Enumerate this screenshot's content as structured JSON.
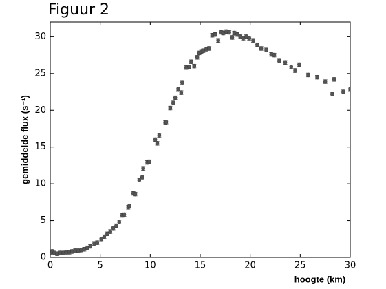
{
  "chart_data": {
    "type": "scatter",
    "title": "Figuur 2",
    "x_label": "hoogte (km)",
    "y_label": "gemiddelde flux (s⁻¹)",
    "x": [
      0.1,
      0.2,
      0.4,
      0.7,
      1.0,
      1.3,
      1.6,
      1.9,
      2.2,
      2.5,
      2.8,
      3.1,
      3.4,
      3.7,
      4.0,
      4.4,
      4.7,
      5.1,
      5.4,
      5.7,
      6.0,
      6.3,
      6.6,
      6.9,
      7.2,
      7.4,
      7.8,
      7.9,
      8.3,
      8.5,
      8.9,
      9.2,
      9.3,
      9.7,
      9.9,
      10.5,
      10.7,
      10.9,
      11.5,
      11.6,
      12.0,
      12.3,
      12.5,
      12.8,
      13.1,
      13.2,
      13.6,
      13.9,
      14.1,
      14.4,
      14.7,
      14.9,
      15.1,
      15.3,
      15.6,
      15.9,
      16.2,
      16.5,
      16.8,
      17.1,
      17.3,
      17.6,
      17.9,
      18.2,
      18.4,
      18.7,
      19.0,
      19.3,
      19.6,
      19.9,
      20.3,
      20.7,
      21.1,
      21.6,
      22.1,
      22.4,
      22.9,
      23.5,
      24.1,
      24.5,
      24.9,
      25.8,
      26.7,
      27.5,
      28.2,
      28.4,
      29.3,
      30.0
    ],
    "values": [
      0.7,
      0.8,
      0.6,
      0.5,
      0.6,
      0.6,
      0.7,
      0.7,
      0.8,
      0.9,
      0.9,
      1.0,
      1.1,
      1.3,
      1.5,
      1.9,
      2.0,
      2.5,
      2.8,
      3.2,
      3.5,
      4.0,
      4.3,
      4.8,
      5.7,
      5.8,
      6.8,
      7.0,
      8.7,
      8.6,
      10.5,
      10.9,
      12.1,
      12.9,
      13.0,
      16.0,
      15.5,
      16.6,
      18.3,
      18.4,
      20.3,
      21.0,
      21.7,
      22.9,
      22.4,
      23.8,
      25.8,
      25.9,
      26.6,
      26.0,
      27.2,
      27.8,
      28.0,
      28.1,
      28.3,
      28.4,
      30.2,
      30.3,
      29.5,
      30.6,
      30.5,
      30.7,
      30.6,
      29.9,
      30.5,
      30.3,
      30.0,
      29.8,
      30.0,
      29.8,
      29.5,
      28.9,
      28.4,
      28.2,
      27.6,
      27.5,
      26.7,
      26.5,
      25.9,
      25.4,
      26.2,
      24.8,
      24.5,
      23.9,
      22.2,
      24.2,
      22.5,
      22.9
    ],
    "error": 0.25,
    "color": "#555555",
    "xlim": [
      0,
      30
    ],
    "ylim": [
      0,
      32
    ],
    "xticks": [
      0,
      5,
      10,
      15,
      20,
      25,
      30
    ],
    "yticks": [
      0,
      5,
      10,
      15,
      20,
      25,
      30
    ]
  }
}
